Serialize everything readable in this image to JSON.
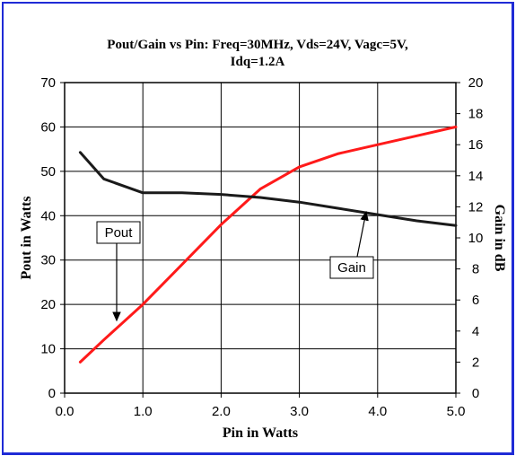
{
  "chart_data": {
    "type": "line",
    "title_line1": "Pout/Gain vs Pin: Freq=30MHz, Vds=24V, Vagc=5V,",
    "title_line2": "Idq=1.2A",
    "xlabel": "Pin in Watts",
    "ylabel_left": "Pout in Watts",
    "ylabel_right": "Gain in dB",
    "xlim": [
      0,
      5
    ],
    "ylim_left": [
      0,
      70
    ],
    "ylim_right": [
      0,
      20
    ],
    "x_ticks": [
      "0.0",
      "1.0",
      "2.0",
      "3.0",
      "4.0",
      "5.0"
    ],
    "y_left_ticks": [
      "0",
      "10",
      "20",
      "30",
      "40",
      "50",
      "60",
      "70"
    ],
    "y_right_ticks": [
      "0",
      "2",
      "4",
      "6",
      "8",
      "10",
      "12",
      "14",
      "16",
      "18",
      "20"
    ],
    "grid": true,
    "series": [
      {
        "name": "Pout",
        "axis": "left",
        "color": "#ff1a1a",
        "x": [
          0.2,
          0.5,
          1.0,
          1.5,
          2.0,
          2.5,
          3.0,
          3.5,
          4.0,
          4.5,
          5.0
        ],
        "y": [
          7,
          12,
          20,
          29,
          38,
          46,
          51,
          54,
          56,
          58,
          60
        ]
      },
      {
        "name": "Gain",
        "axis": "right",
        "color": "#1a1a1a",
        "x": [
          0.2,
          0.5,
          1.0,
          1.5,
          2.0,
          2.5,
          3.0,
          3.5,
          4.0,
          4.5,
          5.0
        ],
        "y": [
          15.5,
          13.8,
          12.9,
          12.9,
          12.8,
          12.6,
          12.3,
          11.9,
          11.5,
          11.1,
          10.8
        ]
      }
    ],
    "annotations": [
      {
        "text": "Pout",
        "target_series": "Pout"
      },
      {
        "text": "Gain",
        "target_series": "Gain"
      }
    ]
  }
}
